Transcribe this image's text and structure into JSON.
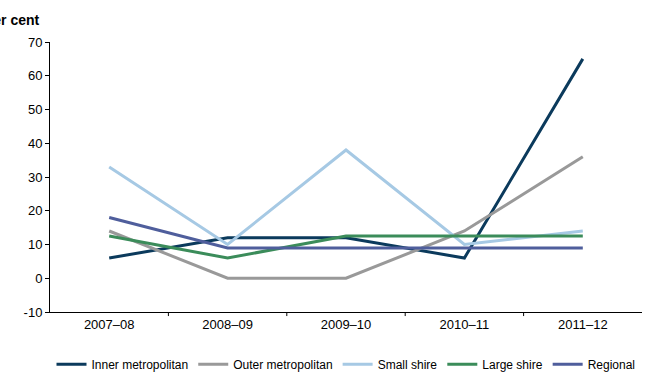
{
  "chart_data": {
    "type": "line",
    "y_label": "Per cent",
    "categories": [
      "2007–08",
      "2008–09",
      "2009–10",
      "2010–11",
      "2011–12"
    ],
    "series": [
      {
        "name": "Inner metropolitan",
        "color": "#0b3a5c",
        "values": [
          6,
          12,
          12,
          6,
          65
        ]
      },
      {
        "name": "Outer metropolitan",
        "color": "#999999",
        "values": [
          14,
          0,
          0,
          14,
          36
        ]
      },
      {
        "name": "Small shire",
        "color": "#a6c9e4",
        "values": [
          33,
          10,
          38,
          10,
          14
        ]
      },
      {
        "name": "Large shire",
        "color": "#3b8c5a",
        "values": [
          12.5,
          6,
          12.5,
          12.5,
          12.5
        ]
      },
      {
        "name": "Regional",
        "color": "#4f5e9c",
        "values": [
          18,
          9,
          9,
          9,
          9
        ]
      }
    ],
    "ylim": [
      -10,
      70
    ],
    "yticks": [
      -10,
      0,
      10,
      20,
      30,
      40,
      50,
      60,
      70
    ],
    "grid": false,
    "legend": "bottom"
  }
}
